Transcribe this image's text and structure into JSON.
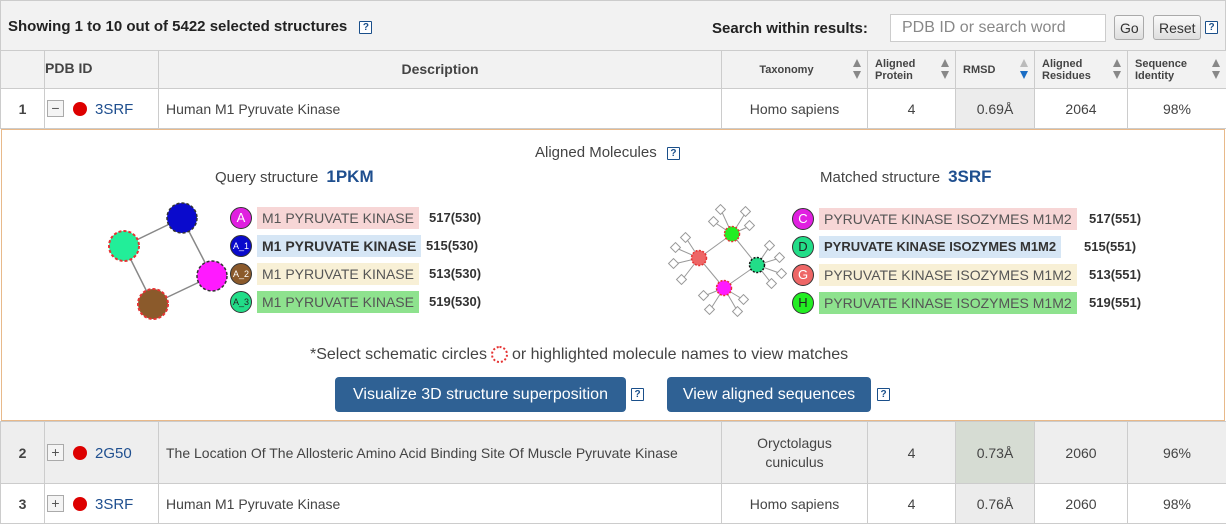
{
  "summary": "Showing 1 to 10 out of 5422 selected structures",
  "help_glyph": "?",
  "search": {
    "label": "Search within results:",
    "placeholder": "PDB ID or search word",
    "go_label": "Go",
    "reset_label": "Reset"
  },
  "columns": {
    "pdb_id": "PDB ID",
    "description": "Description",
    "taxonomy": "Taxonomy",
    "aligned_protein": "Aligned Protein",
    "rmsd": "RMSD",
    "aligned_residues": "Aligned Residues",
    "sequence_identity": "Sequence Identity"
  },
  "rows": [
    {
      "num": "1",
      "toggle": "−",
      "pdb": "3SRF",
      "description": "Human M1 Pyruvate Kinase",
      "taxonomy": "Homo sapiens",
      "aligned_protein": "4",
      "rmsd": "0.69Å",
      "aligned_residues": "2064",
      "sequence_identity": "98%"
    },
    {
      "num": "2",
      "toggle": "+",
      "pdb": "2G50",
      "description": "The Location Of The Allosteric Amino Acid Binding Site Of Muscle Pyruvate Kinase",
      "taxonomy": "Oryctolagus cuniculus",
      "aligned_protein": "4",
      "rmsd": "0.73Å",
      "aligned_residues": "2060",
      "sequence_identity": "96%"
    },
    {
      "num": "3",
      "toggle": "+",
      "pdb": "3SRF",
      "description": "Human M1 Pyruvate Kinase",
      "taxonomy": "Homo sapiens",
      "aligned_protein": "4",
      "rmsd": "0.76Å",
      "aligned_residues": "2060",
      "sequence_identity": "98%"
    }
  ],
  "detail": {
    "title": "Aligned Molecules",
    "query_label": "Query structure",
    "query_id": "1PKM",
    "matched_label": "Matched structure",
    "matched_id": "3SRF",
    "query_molecules": [
      {
        "badge": "A",
        "name": "M1 PYRUVATE KINASE",
        "count": "517(530)",
        "color": "#e020e0",
        "bg": "#f7d6d6"
      },
      {
        "badge": "A_1",
        "name": "M1 PYRUVATE KINASE",
        "count": "515(530)",
        "color": "#0a0acc",
        "bg": "#d6e6f5"
      },
      {
        "badge": "A_2",
        "name": "M1 PYRUVATE KINASE",
        "count": "513(530)",
        "color": "#8b5a2b",
        "bg": "#f8f0d6"
      },
      {
        "badge": "A_3",
        "name": "M1 PYRUVATE KINASE",
        "count": "519(530)",
        "color": "#22dd88",
        "bg": "#8ee28e"
      }
    ],
    "matched_molecules": [
      {
        "badge": "C",
        "name": "PYRUVATE KINASE ISOZYMES M1M2",
        "count": "517(551)",
        "color": "#e020e0",
        "bg": "#f7d6d6"
      },
      {
        "badge": "D",
        "name": "PYRUVATE KINASE ISOZYMES M1M2",
        "count": "515(551)",
        "color": "#22dd88",
        "bg": "#d6e6f5"
      },
      {
        "badge": "G",
        "name": "PYRUVATE KINASE ISOZYMES M1M2",
        "count": "513(551)",
        "color": "#ee6666",
        "bg": "#f8f0d6"
      },
      {
        "badge": "H",
        "name": "PYRUVATE KINASE ISOZYMES M1M2",
        "count": "519(551)",
        "color": "#22ee22",
        "bg": "#8ee28e"
      }
    ],
    "hint_prefix": "*Select schematic circles",
    "hint_suffix": "or highlighted molecule names to view matches",
    "visualize_label": "Visualize 3D structure superposition",
    "sequences_label": "View aligned sequences"
  }
}
